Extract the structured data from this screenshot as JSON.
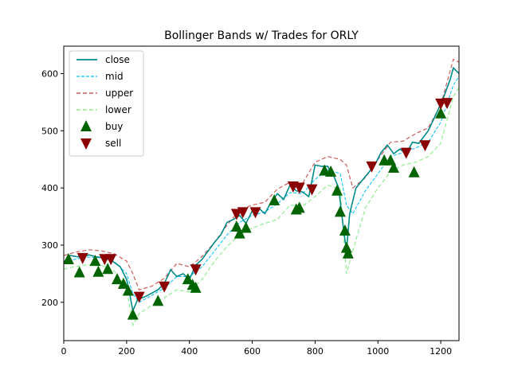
{
  "chart_data": {
    "type": "line",
    "title": "Bollinger Bands w/ Trades for ORLY",
    "xlabel": "",
    "ylabel": "",
    "xlim": [
      0,
      1258
    ],
    "ylim": [
      133,
      648
    ],
    "x_ticks": [
      0,
      200,
      400,
      600,
      800,
      1000,
      1200
    ],
    "y_ticks": [
      200,
      300,
      400,
      500,
      600
    ],
    "grid": false,
    "legend_position": "top-left",
    "colors": {
      "close": "#008b8b",
      "mid": "#00bfff",
      "upper": "#cd5c5c",
      "lower": "#90ee90",
      "buy": "#006400",
      "sell": "#8b0000"
    },
    "series": [
      {
        "name": "close",
        "x": [
          0,
          20,
          40,
          60,
          80,
          100,
          120,
          140,
          160,
          180,
          200,
          210,
          220,
          235,
          260,
          300,
          320,
          340,
          360,
          380,
          400,
          420,
          440,
          460,
          480,
          500,
          520,
          540,
          560,
          580,
          600,
          620,
          640,
          660,
          680,
          700,
          720,
          740,
          760,
          780,
          800,
          820,
          840,
          860,
          875,
          890,
          900,
          910,
          930,
          960,
          990,
          1010,
          1030,
          1050,
          1070,
          1090,
          1110,
          1130,
          1160,
          1190,
          1210,
          1230,
          1240,
          1258
        ],
        "y": [
          270,
          282,
          280,
          279,
          283,
          280,
          278,
          279,
          270,
          262,
          240,
          215,
          185,
          205,
          210,
          222,
          233,
          257,
          245,
          250,
          240,
          265,
          275,
          290,
          305,
          318,
          340,
          345,
          352,
          338,
          360,
          365,
          355,
          375,
          390,
          380,
          405,
          395,
          393,
          385,
          440,
          438,
          438,
          420,
          400,
          330,
          290,
          355,
          400,
          420,
          440,
          462,
          475,
          460,
          468,
          460,
          480,
          478,
          500,
          535,
          560,
          590,
          610,
          600
        ]
      },
      {
        "name": "mid",
        "x": [
          0,
          40,
          80,
          120,
          160,
          200,
          220,
          240,
          280,
          320,
          360,
          400,
          440,
          480,
          520,
          560,
          600,
          640,
          680,
          720,
          760,
          800,
          840,
          880,
          900,
          920,
          960,
          1000,
          1040,
          1080,
          1120,
          1160,
          1200,
          1240,
          1258
        ],
        "y": [
          270,
          276,
          279,
          278,
          272,
          250,
          215,
          200,
          212,
          225,
          245,
          245,
          262,
          290,
          318,
          340,
          352,
          358,
          372,
          392,
          390,
          415,
          432,
          425,
          370,
          355,
          395,
          425,
          455,
          462,
          470,
          480,
          515,
          580,
          595
        ]
      },
      {
        "name": "upper",
        "x": [
          0,
          40,
          80,
          120,
          160,
          200,
          220,
          240,
          280,
          320,
          360,
          400,
          440,
          480,
          520,
          560,
          600,
          640,
          680,
          720,
          760,
          800,
          840,
          880,
          900,
          920,
          960,
          1000,
          1040,
          1080,
          1120,
          1160,
          1200,
          1240,
          1258
        ],
        "y": [
          282,
          288,
          292,
          290,
          285,
          272,
          250,
          222,
          228,
          242,
          268,
          262,
          280,
          305,
          335,
          362,
          370,
          375,
          398,
          410,
          408,
          445,
          455,
          450,
          440,
          400,
          418,
          450,
          480,
          482,
          495,
          505,
          545,
          625,
          620
        ]
      },
      {
        "name": "lower",
        "x": [
          0,
          40,
          80,
          120,
          160,
          200,
          220,
          240,
          280,
          320,
          360,
          400,
          440,
          480,
          520,
          560,
          600,
          640,
          680,
          720,
          760,
          800,
          840,
          880,
          900,
          920,
          960,
          1000,
          1040,
          1080,
          1120,
          1160,
          1200,
          1240,
          1258
        ],
        "y": [
          258,
          263,
          266,
          265,
          255,
          225,
          160,
          180,
          195,
          208,
          222,
          218,
          240,
          272,
          298,
          318,
          330,
          338,
          345,
          370,
          368,
          385,
          405,
          398,
          250,
          290,
          365,
          400,
          428,
          440,
          445,
          455,
          478,
          560,
          575
        ]
      }
    ],
    "markers": [
      {
        "name": "buy",
        "x": [
          15,
          50,
          100,
          110,
          140,
          170,
          190,
          205,
          220,
          300,
          395,
          410,
          420,
          550,
          560,
          580,
          670,
          740,
          750,
          830,
          850,
          870,
          880,
          895,
          900,
          905,
          1020,
          1040,
          1050,
          1115,
          1200
        ],
        "y": [
          275,
          252,
          272,
          253,
          258,
          240,
          232,
          220,
          178,
          202,
          240,
          230,
          225,
          332,
          320,
          330,
          378,
          362,
          365,
          430,
          428,
          395,
          358,
          325,
          295,
          285,
          448,
          448,
          435,
          427,
          530
        ]
      },
      {
        "name": "sell",
        "x": [
          60,
          130,
          150,
          240,
          320,
          420,
          550,
          570,
          610,
          730,
          750,
          790,
          980,
          1090,
          1150,
          1200,
          1220
        ],
        "y": [
          278,
          276,
          276,
          210,
          228,
          258,
          355,
          358,
          358,
          403,
          401,
          398,
          438,
          462,
          475,
          548,
          549
        ]
      }
    ]
  }
}
